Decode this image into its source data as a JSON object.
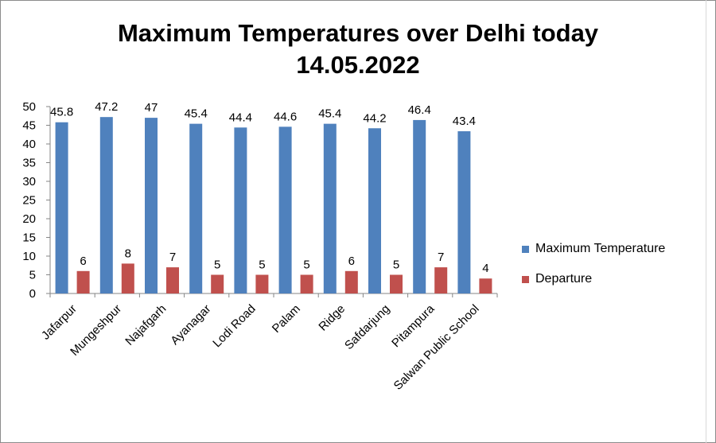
{
  "chart_data": {
    "type": "bar",
    "title": "Maximum Temperatures over Delhi today",
    "subtitle": "14.05.2022",
    "categories": [
      "Jafarpur",
      "Mungeshpur",
      "Najafgarh",
      "Ayanagar",
      "Lodi Road",
      "Palam",
      "Ridge",
      "Safdarjung",
      "Pitampura",
      "Salwan Public School"
    ],
    "series": [
      {
        "name": "Maximum Temperature",
        "color": "#4f81bd",
        "values": [
          45.8,
          47.2,
          47,
          45.4,
          44.4,
          44.6,
          45.4,
          44.2,
          46.4,
          43.4
        ]
      },
      {
        "name": "Departure",
        "color": "#c0504d",
        "values": [
          6,
          8,
          7,
          5,
          5,
          5,
          6,
          5,
          7,
          4
        ]
      }
    ],
    "ylim": [
      0,
      50
    ],
    "yticks": [
      0,
      5,
      10,
      15,
      20,
      25,
      30,
      35,
      40,
      45,
      50
    ],
    "xlabel": "",
    "ylabel": "",
    "grid": false,
    "legend": "right",
    "data_labels": true
  }
}
